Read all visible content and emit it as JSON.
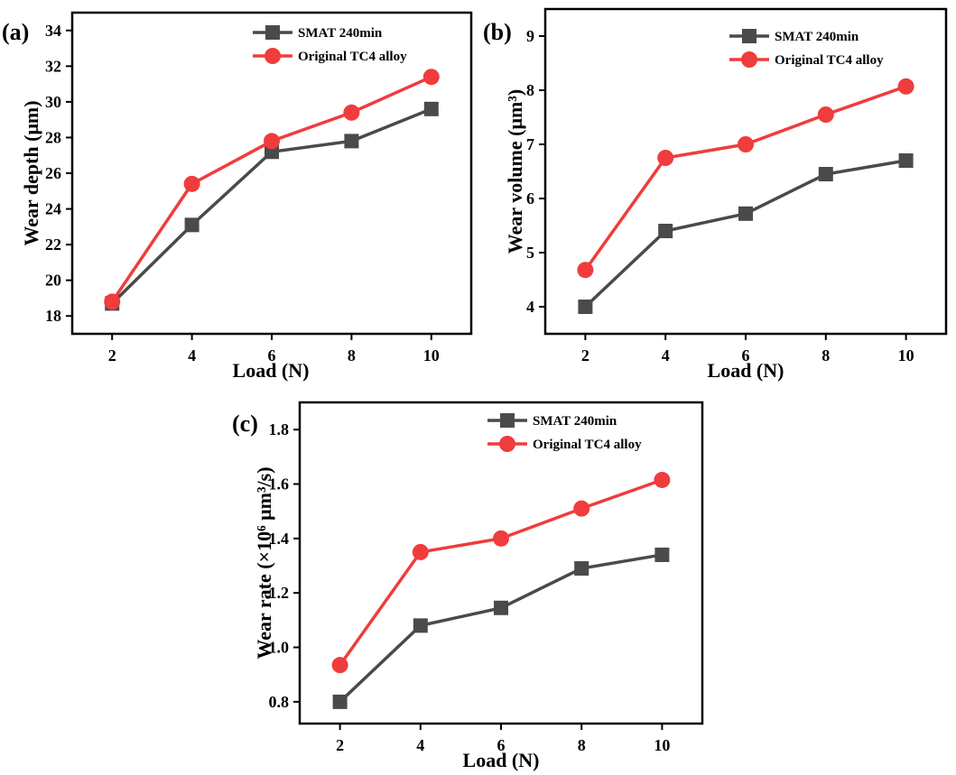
{
  "chart_data": [
    {
      "type": "line",
      "panel_label": "(a)",
      "xlabel": "Load (N)",
      "ylabel": "Wear depth (μm)",
      "categories": [
        2,
        4,
        6,
        8,
        10
      ],
      "xlim": [
        1,
        11
      ],
      "ylim": [
        17,
        35
      ],
      "yticks": [
        18,
        20,
        22,
        24,
        26,
        28,
        30,
        32,
        34
      ],
      "ytick_labels": [
        "18",
        "20",
        "22",
        "24",
        "26",
        "28",
        "30",
        "32",
        "34"
      ],
      "legend_position": "top-right",
      "series": [
        {
          "name": "SMAT 240min",
          "marker": "square",
          "color": "#4a4a4a",
          "values": [
            18.7,
            23.1,
            27.2,
            27.8,
            29.6
          ]
        },
        {
          "name": "Original TC4 alloy",
          "marker": "circle",
          "color": "#f03c3c",
          "values": [
            18.8,
            25.4,
            27.8,
            29.4,
            31.4
          ]
        }
      ]
    },
    {
      "type": "line",
      "panel_label": "(b)",
      "xlabel": "Load (N)",
      "ylabel": "Wear volume (μm³)",
      "categories": [
        2,
        4,
        6,
        8,
        10
      ],
      "xlim": [
        1,
        11
      ],
      "ylim": [
        3.5,
        9.5
      ],
      "yticks": [
        4,
        5,
        6,
        7,
        8,
        9
      ],
      "ytick_labels": [
        "4",
        "5",
        "6",
        "7",
        "8",
        "9"
      ],
      "legend_position": "top-right",
      "series": [
        {
          "name": "SMAT 240min",
          "marker": "square",
          "color": "#4a4a4a",
          "values": [
            4.0,
            5.4,
            5.72,
            6.45,
            6.7
          ]
        },
        {
          "name": "Original TC4 alloy",
          "marker": "circle",
          "color": "#f03c3c",
          "values": [
            4.68,
            6.75,
            7.0,
            7.55,
            8.07
          ]
        }
      ]
    },
    {
      "type": "line",
      "panel_label": "(c)",
      "xlabel": "Load (N)",
      "ylabel": "Wear rate (×10⁶ μm³/s)",
      "categories": [
        2,
        4,
        6,
        8,
        10
      ],
      "xlim": [
        1,
        11
      ],
      "ylim": [
        0.72,
        1.9
      ],
      "yticks": [
        0.8,
        1.0,
        1.2,
        1.4,
        1.6,
        1.8
      ],
      "ytick_labels": [
        "0.8",
        "1.0",
        "1.2",
        "1.4",
        "1.6",
        "1.8"
      ],
      "legend_position": "top-right",
      "series": [
        {
          "name": "SMAT 240min",
          "marker": "square",
          "color": "#4a4a4a",
          "values": [
            0.8,
            1.08,
            1.145,
            1.29,
            1.34
          ]
        },
        {
          "name": "Original TC4 alloy",
          "marker": "circle",
          "color": "#f03c3c",
          "values": [
            0.935,
            1.35,
            1.4,
            1.51,
            1.615
          ]
        }
      ]
    }
  ]
}
